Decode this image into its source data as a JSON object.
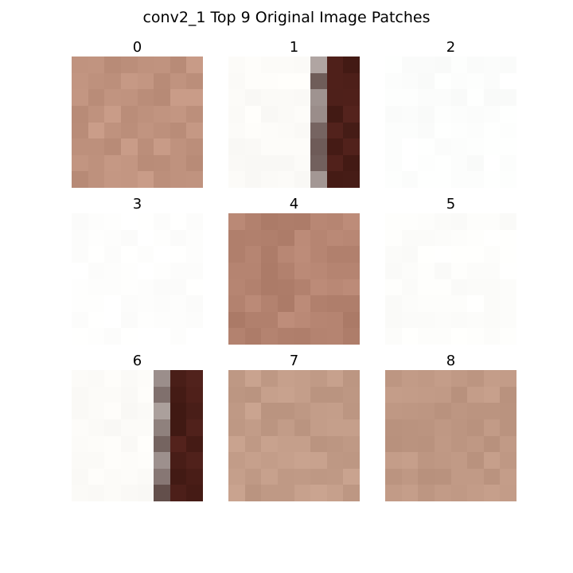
{
  "title": "conv2_1 Top 9 Original Image Patches",
  "patches": [
    {
      "label": "0",
      "base": "#c0937f",
      "variation": 10,
      "style": "uniform"
    },
    {
      "label": "1",
      "base": "#fcfbf8",
      "dark": "#4a1e18",
      "style": "edge",
      "edgeCol": 5
    },
    {
      "label": "2",
      "base": "#fcfdfc",
      "variation": 3,
      "style": "uniform"
    },
    {
      "label": "3",
      "base": "#fefefd",
      "variation": 3,
      "style": "uniform"
    },
    {
      "label": "4",
      "base": "#b48370",
      "variation": 10,
      "style": "uniform"
    },
    {
      "label": "5",
      "base": "#fdfdfb",
      "variation": 3,
      "style": "uniform"
    },
    {
      "label": "6",
      "base": "#fcfbf8",
      "dark": "#4a1e18",
      "style": "edge",
      "edgeCol": 5
    },
    {
      "label": "7",
      "base": "#c29c88",
      "variation": 8,
      "style": "uniform"
    },
    {
      "label": "8",
      "base": "#bf9884",
      "variation": 8,
      "style": "uniform"
    }
  ]
}
